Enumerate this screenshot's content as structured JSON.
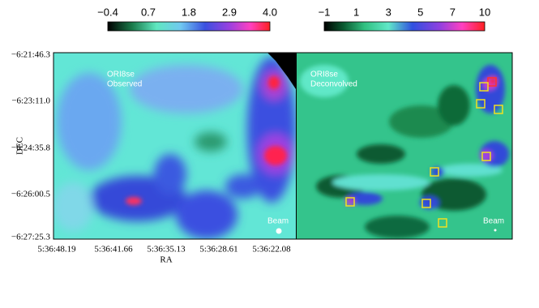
{
  "colorbars": [
    {
      "ticks": [
        "−0.4",
        "0.7",
        "1.8",
        "2.9",
        "4.0"
      ]
    },
    {
      "ticks": [
        "−1",
        "1",
        "3",
        "5",
        "7",
        "10"
      ]
    }
  ],
  "panels": [
    {
      "source": "ORI8se",
      "label": "Observed",
      "beam": "Beam"
    },
    {
      "source": "ORI8se",
      "label": "Deconvolved",
      "beam": "Beam"
    }
  ],
  "axes": {
    "x_label": "RA",
    "y_label": "DEC",
    "x_ticks": [
      "5:36:48.19",
      "5:36:41.66",
      "5:36:35.13",
      "5:36:28.61",
      "5:36:22.08"
    ],
    "y_ticks": [
      "−6:21:46.3",
      "−6:23:11.0",
      "−6:24:35.8",
      "−6:26:00.5",
      "−6:27:25.3"
    ]
  }
}
